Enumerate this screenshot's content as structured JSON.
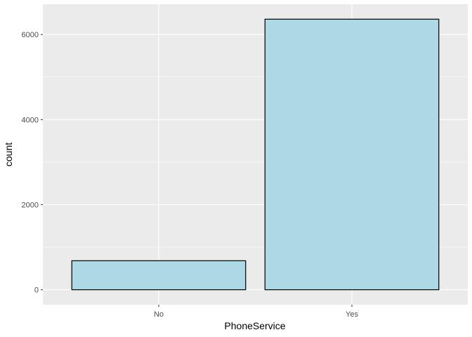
{
  "chart_data": {
    "type": "bar",
    "title": "",
    "xlabel": "PhoneService",
    "ylabel": "count",
    "categories": [
      "No",
      "Yes"
    ],
    "values": [
      682,
      6361
    ],
    "ylim": [
      -352,
      6713
    ],
    "yticks": [
      0,
      2000,
      4000,
      6000
    ],
    "ytick_labels": [
      "0",
      "2000",
      "4000",
      "6000"
    ],
    "grid": true,
    "legend": "none",
    "colors": {
      "bar_fill": "#add8e6",
      "bar_stroke": "#000000",
      "panel_bg": "#ebebeb",
      "grid_major": "#ffffff",
      "tick_text": "#4d4d4d"
    }
  }
}
